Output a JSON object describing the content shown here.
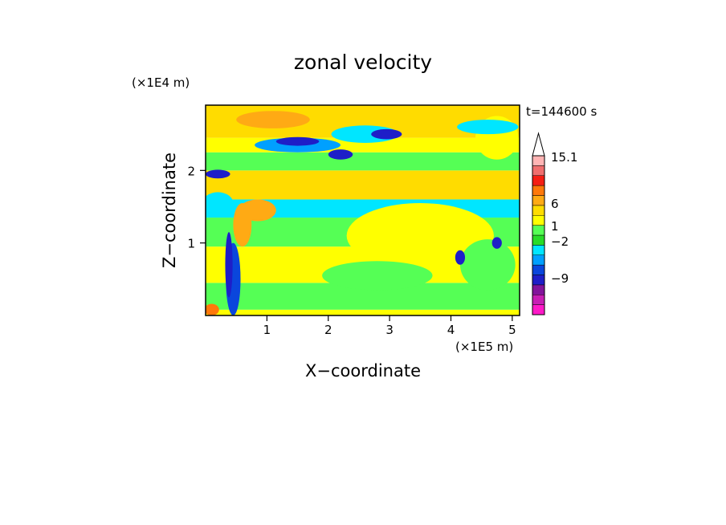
{
  "chart_data": {
    "type": "heatmap",
    "title": "zonal velocity",
    "time_label": "t=144600 s",
    "xlabel": "X−coordinate",
    "ylabel": "Z−coordinate",
    "x_scale_label": "(×1E5 m)",
    "y_scale_label": "(×1E4 m)",
    "xlim": [
      0,
      5.12
    ],
    "ylim": [
      0,
      2.9
    ],
    "x_ticks": [
      {
        "value": 1,
        "label": "1"
      },
      {
        "value": 2,
        "label": "2"
      },
      {
        "value": 3,
        "label": "3"
      },
      {
        "value": 4,
        "label": "4"
      },
      {
        "value": 5,
        "label": "5"
      }
    ],
    "y_ticks": [
      {
        "value": 1,
        "label": "1"
      },
      {
        "value": 2,
        "label": "2"
      }
    ],
    "colorbar": {
      "labels": [
        "15.1",
        "6",
        "1",
        "−2",
        "−9"
      ],
      "levels": [
        {
          "color": "#ff19c8"
        },
        {
          "color": "#c81eb4"
        },
        {
          "color": "#82149b"
        },
        {
          "color": "#1e1ec8"
        },
        {
          "color": "#0a46dc"
        },
        {
          "color": "#00a0ff"
        },
        {
          "color": "#00e6ff"
        },
        {
          "color": "#28dc28"
        },
        {
          "color": "#55ff55"
        },
        {
          "color": "#ffff00"
        },
        {
          "color": "#ffdc00"
        },
        {
          "color": "#ffaa14"
        },
        {
          "color": "#ff780a"
        },
        {
          "color": "#f51e14"
        },
        {
          "color": "#f06e6e"
        },
        {
          "color": "#ffb4b4"
        }
      ]
    },
    "field_bands": [
      {
        "z": [
          0.0,
          0.08
        ],
        "color": "#ffff00"
      },
      {
        "z": [
          0.08,
          0.45
        ],
        "color": "#55ff55"
      },
      {
        "z": [
          0.45,
          0.95
        ],
        "color": "#ffff00"
      },
      {
        "z": [
          0.95,
          1.35
        ],
        "color": "#55ff55"
      },
      {
        "z": [
          1.35,
          1.6
        ],
        "color": "#00e6ff"
      },
      {
        "z": [
          1.6,
          2.0
        ],
        "color": "#ffdc00"
      },
      {
        "z": [
          2.0,
          2.25
        ],
        "color": "#55ff55"
      },
      {
        "z": [
          2.25,
          2.45
        ],
        "color": "#ffff00"
      },
      {
        "z": [
          2.45,
          2.9
        ],
        "color": "#ffdc00"
      }
    ],
    "field_blobs": [
      {
        "x": 1.5,
        "z": 2.35,
        "rx": 0.7,
        "rz": 0.1,
        "color": "#00a0ff"
      },
      {
        "x": 1.5,
        "z": 2.4,
        "rx": 0.35,
        "rz": 0.06,
        "color": "#1e1ec8"
      },
      {
        "x": 2.6,
        "z": 2.5,
        "rx": 0.55,
        "rz": 0.12,
        "color": "#00e6ff"
      },
      {
        "x": 2.95,
        "z": 2.5,
        "rx": 0.25,
        "rz": 0.07,
        "color": "#1e1ec8"
      },
      {
        "x": 2.2,
        "z": 2.22,
        "rx": 0.2,
        "rz": 0.07,
        "color": "#1e1ec8"
      },
      {
        "x": 0.2,
        "z": 1.95,
        "rx": 0.2,
        "rz": 0.06,
        "color": "#1e1ec8"
      },
      {
        "x": 3.5,
        "z": 1.1,
        "rx": 1.2,
        "rz": 0.45,
        "color": "#ffff00"
      },
      {
        "x": 2.8,
        "z": 0.55,
        "rx": 0.9,
        "rz": 0.2,
        "color": "#55ff55"
      },
      {
        "x": 4.6,
        "z": 0.7,
        "rx": 0.45,
        "rz": 0.35,
        "color": "#55ff55"
      },
      {
        "x": 4.15,
        "z": 0.8,
        "rx": 0.08,
        "rz": 0.1,
        "color": "#1e1ec8"
      },
      {
        "x": 4.75,
        "z": 1.0,
        "rx": 0.08,
        "rz": 0.08,
        "color": "#1e1ec8"
      },
      {
        "x": 4.75,
        "z": 2.45,
        "rx": 0.35,
        "rz": 0.3,
        "color": "#ffff00"
      },
      {
        "x": 4.6,
        "z": 2.6,
        "rx": 0.5,
        "rz": 0.1,
        "color": "#00e6ff"
      },
      {
        "x": 0.6,
        "z": 1.25,
        "rx": 0.15,
        "rz": 0.3,
        "color": "#ffaa14"
      },
      {
        "x": 0.45,
        "z": 0.5,
        "rx": 0.12,
        "rz": 0.5,
        "color": "#0a46dc"
      },
      {
        "x": 0.38,
        "z": 0.7,
        "rx": 0.06,
        "rz": 0.45,
        "color": "#1e1ec8"
      },
      {
        "x": 0.1,
        "z": 0.08,
        "rx": 0.12,
        "rz": 0.08,
        "color": "#ff780a"
      },
      {
        "x": 0.2,
        "z": 1.55,
        "rx": 0.25,
        "rz": 0.15,
        "color": "#00e6ff"
      },
      {
        "x": 0.85,
        "z": 1.45,
        "rx": 0.3,
        "rz": 0.15,
        "color": "#ffaa14"
      },
      {
        "x": 1.1,
        "z": 2.7,
        "rx": 0.6,
        "rz": 0.12,
        "color": "#ffaa14"
      }
    ]
  }
}
